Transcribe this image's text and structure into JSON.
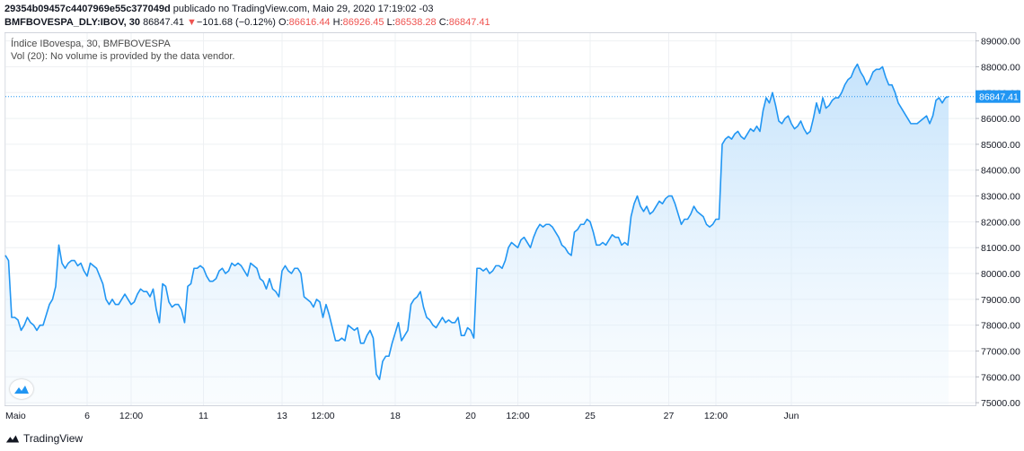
{
  "header": {
    "line1_id": "29354b09457c4407969e55c377049d",
    "line1_rest": " publicado no TradingView.com, Maio 29, 2020 17:19:02 -03",
    "symbol": "BMFBOVESPA_DLY:IBOV, 30",
    "last": "86847.41",
    "change_arrow": "▼",
    "change": "−101.68 (−0.12%)",
    "o_label": "O:",
    "o_value": "86616.44",
    "h_label": "H:",
    "h_value": "86926.45",
    "l_label": "L:",
    "l_value": "86538.28",
    "c_label": "C:",
    "c_value": "86847.41"
  },
  "legend": {
    "title": "Índice IBovespa, 30, BMFBOVESPA",
    "volume_note": "Vol (20): No volume is provided by the data vendor."
  },
  "footer": {
    "brand": "TradingView"
  },
  "colors": {
    "line": "#2196f3",
    "fill": "#bbdefb",
    "grid": "#eef0f3",
    "down": "#ef5350"
  },
  "chart_data": {
    "type": "area",
    "ylim": [
      74900,
      89300
    ],
    "y_ticks": [
      "75000.00",
      "76000.00",
      "77000.00",
      "78000.00",
      "79000.00",
      "80000.00",
      "81000.00",
      "82000.00",
      "83000.00",
      "84000.00",
      "85000.00",
      "86000.00",
      "87000.00",
      "88000.00",
      "89000.00"
    ],
    "last_price_label": "86847.41",
    "x_ticks": [
      {
        "label": "Maio",
        "i": 0
      },
      {
        "label": "6",
        "i": 26
      },
      {
        "label": "12:00",
        "i": 40
      },
      {
        "label": "11",
        "i": 63
      },
      {
        "label": "13",
        "i": 88
      },
      {
        "label": "12:00",
        "i": 101
      },
      {
        "label": "18",
        "i": 124
      },
      {
        "label": "20",
        "i": 148
      },
      {
        "label": "12:00",
        "i": 163
      },
      {
        "label": "25",
        "i": 186
      },
      {
        "label": "27",
        "i": 211
      },
      {
        "label": "12:00",
        "i": 226
      },
      {
        "label": "Jun",
        "i": 250
      }
    ],
    "values": [
      80700,
      80500,
      78300,
      78300,
      78200,
      77800,
      78000,
      78300,
      78100,
      78000,
      77800,
      78000,
      78000,
      78400,
      78800,
      79000,
      79500,
      81100,
      80400,
      80200,
      80400,
      80500,
      80500,
      80300,
      80400,
      80100,
      79900,
      80400,
      80300,
      80200,
      79900,
      79600,
      79000,
      78800,
      79000,
      78800,
      78800,
      79000,
      79200,
      79000,
      78800,
      78900,
      79200,
      79400,
      79300,
      79300,
      79100,
      79400,
      78600,
      78100,
      79600,
      79500,
      78900,
      78700,
      78800,
      78800,
      78600,
      78100,
      79500,
      79600,
      80200,
      80200,
      80300,
      80200,
      79900,
      79700,
      79700,
      79800,
      80100,
      80200,
      80000,
      80100,
      80400,
      80300,
      80400,
      80300,
      80100,
      79900,
      80400,
      80300,
      80200,
      79800,
      79700,
      79400,
      79800,
      79400,
      79300,
      79100,
      80100,
      80300,
      80100,
      80000,
      80200,
      80200,
      80000,
      79100,
      79000,
      78900,
      78700,
      79000,
      78900,
      78300,
      78800,
      78400,
      77900,
      77400,
      77400,
      77500,
      77400,
      78000,
      77900,
      77800,
      77900,
      77300,
      77300,
      77600,
      77800,
      77500,
      76100,
      75900,
      76600,
      76800,
      76800,
      77300,
      77700,
      78100,
      77400,
      77600,
      77800,
      78800,
      79000,
      79100,
      79300,
      78700,
      78300,
      78200,
      78000,
      77900,
      78100,
      78300,
      78100,
      78200,
      78100,
      78100,
      78300,
      77600,
      77600,
      77900,
      77800,
      77500,
      80200,
      80200,
      80100,
      80200,
      80000,
      80100,
      80300,
      80300,
      80200,
      80500,
      81000,
      81200,
      81100,
      81000,
      81300,
      81400,
      81200,
      81000,
      81400,
      81700,
      81900,
      81800,
      81900,
      81900,
      81800,
      81600,
      81400,
      81100,
      81000,
      80800,
      80700,
      81600,
      81700,
      81900,
      81900,
      82100,
      82000,
      81600,
      81100,
      81100,
      81200,
      81100,
      81300,
      81500,
      81400,
      81400,
      81100,
      81200,
      81100,
      82200,
      82700,
      83000,
      82600,
      82400,
      82600,
      82300,
      82400,
      82600,
      82800,
      82700,
      82900,
      83000,
      83000,
      82700,
      82300,
      81900,
      82100,
      82100,
      82300,
      82600,
      82400,
      82300,
      82200,
      81900,
      81800,
      81900,
      82100,
      82100,
      85000,
      85200,
      85300,
      85200,
      85400,
      85500,
      85300,
      85200,
      85400,
      85600,
      85500,
      85700,
      85500,
      86300,
      86800,
      86600,
      87000,
      86500,
      85900,
      85800,
      86000,
      86100,
      85800,
      85600,
      85700,
      85900,
      85600,
      85400,
      85500,
      86000,
      86600,
      86200,
      86800,
      86400,
      86500,
      86700,
      86800,
      86800,
      87000,
      87300,
      87500,
      87600,
      87900,
      88100,
      87800,
      87600,
      87300,
      87500,
      87800,
      87900,
      87900,
      88000,
      87600,
      87300,
      87300,
      87000,
      86600,
      86400,
      86200,
      86000,
      85800,
      85800,
      85800,
      85900,
      86000,
      86100,
      85800,
      86100,
      86700,
      86800,
      86600,
      86800,
      86847
    ]
  }
}
